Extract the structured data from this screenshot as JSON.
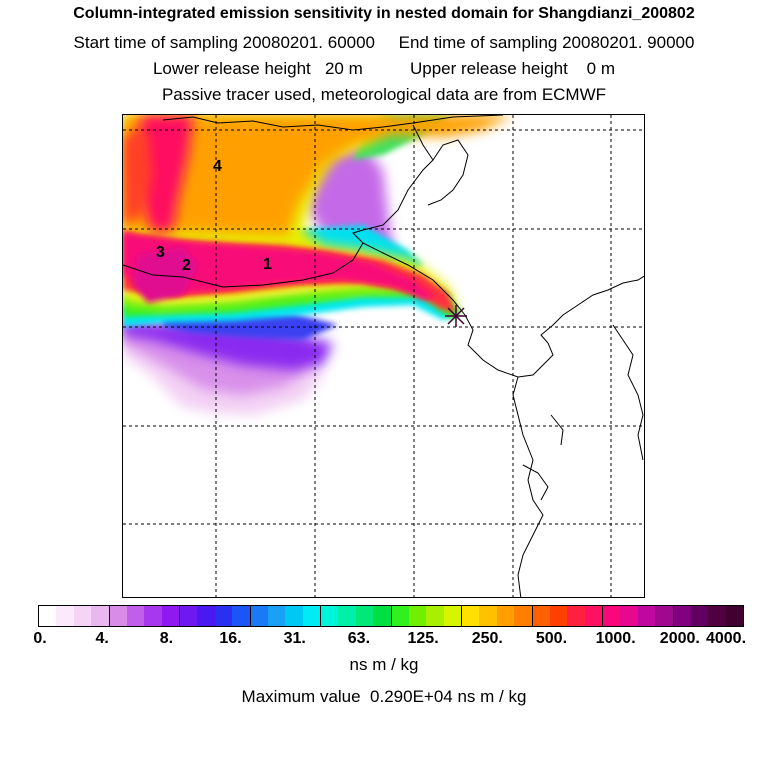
{
  "header": {
    "title": "Column-integrated emission sensitivity in nested domain for Shangdianzi_200802",
    "sampling_line": "Start time of sampling 20080201. 60000     End time of sampling 20080201. 90000",
    "release_line": "Lower release height   20 m          Upper release height    0 m",
    "tracer_line": "Passive tracer used, meteorological data are from ECMWF"
  },
  "map": {
    "cluster_labels": [
      "1",
      "2",
      "3",
      "4"
    ],
    "station_marker": "station-asterisk-icon"
  },
  "colorbar": {
    "tick_labels": [
      "0.",
      "4.",
      "8.",
      "16.",
      "31.",
      "63.",
      "125.",
      "250.",
      "500.",
      "1000.",
      "2000.",
      "4000."
    ],
    "colors": [
      "#ffffff",
      "#fbeafb",
      "#f5d5f5",
      "#eab8ef",
      "#d88ce8",
      "#c060ea",
      "#a838ee",
      "#9018f0",
      "#7018f0",
      "#4a18f0",
      "#2a30f0",
      "#1a55f5",
      "#1a7af5",
      "#1aa0f5",
      "#00c8f5",
      "#00ecf5",
      "#00f5d8",
      "#00f0a8",
      "#00e878",
      "#00e040",
      "#30f020",
      "#70f000",
      "#a8f000",
      "#d8f500",
      "#ffe000",
      "#ffc000",
      "#ffa000",
      "#ff8000",
      "#ff6000",
      "#ff4000",
      "#ff2040",
      "#ff1060",
      "#f80878",
      "#e80890",
      "#c008a0",
      "#a00890",
      "#800080",
      "#600060",
      "#500040",
      "#400030"
    ]
  },
  "unit_label": "ns m / kg",
  "max_value_line": "Maximum value  0.290E+04 ns m / kg"
}
